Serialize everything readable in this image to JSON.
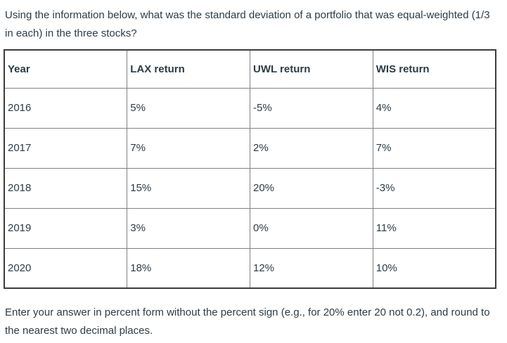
{
  "question": {
    "text": "Using the information below, what was the standard deviation of a portfolio that was equal-weighted (1/3 in each) in the three stocks?"
  },
  "table": {
    "headers": [
      "Year",
      "LAX return",
      "UWL return",
      "WIS return"
    ],
    "rows": [
      [
        "2016",
        "5%",
        "-5%",
        "4%"
      ],
      [
        "2017",
        "7%",
        "2%",
        "7%"
      ],
      [
        "2018",
        "15%",
        "20%",
        "-3%"
      ],
      [
        "2019",
        "3%",
        "0%",
        "11%"
      ],
      [
        "2020",
        "18%",
        "12%",
        "10%"
      ]
    ]
  },
  "footer": {
    "text": "Enter your answer in percent form without the percent sign (e.g., for 20% enter 20 not 0.2), and round to the nearest two decimal places."
  },
  "colors": {
    "text": "#2d3b45",
    "border_outer": "#3c3c3c",
    "border_inner": "#818181",
    "background": "#ffffff"
  }
}
